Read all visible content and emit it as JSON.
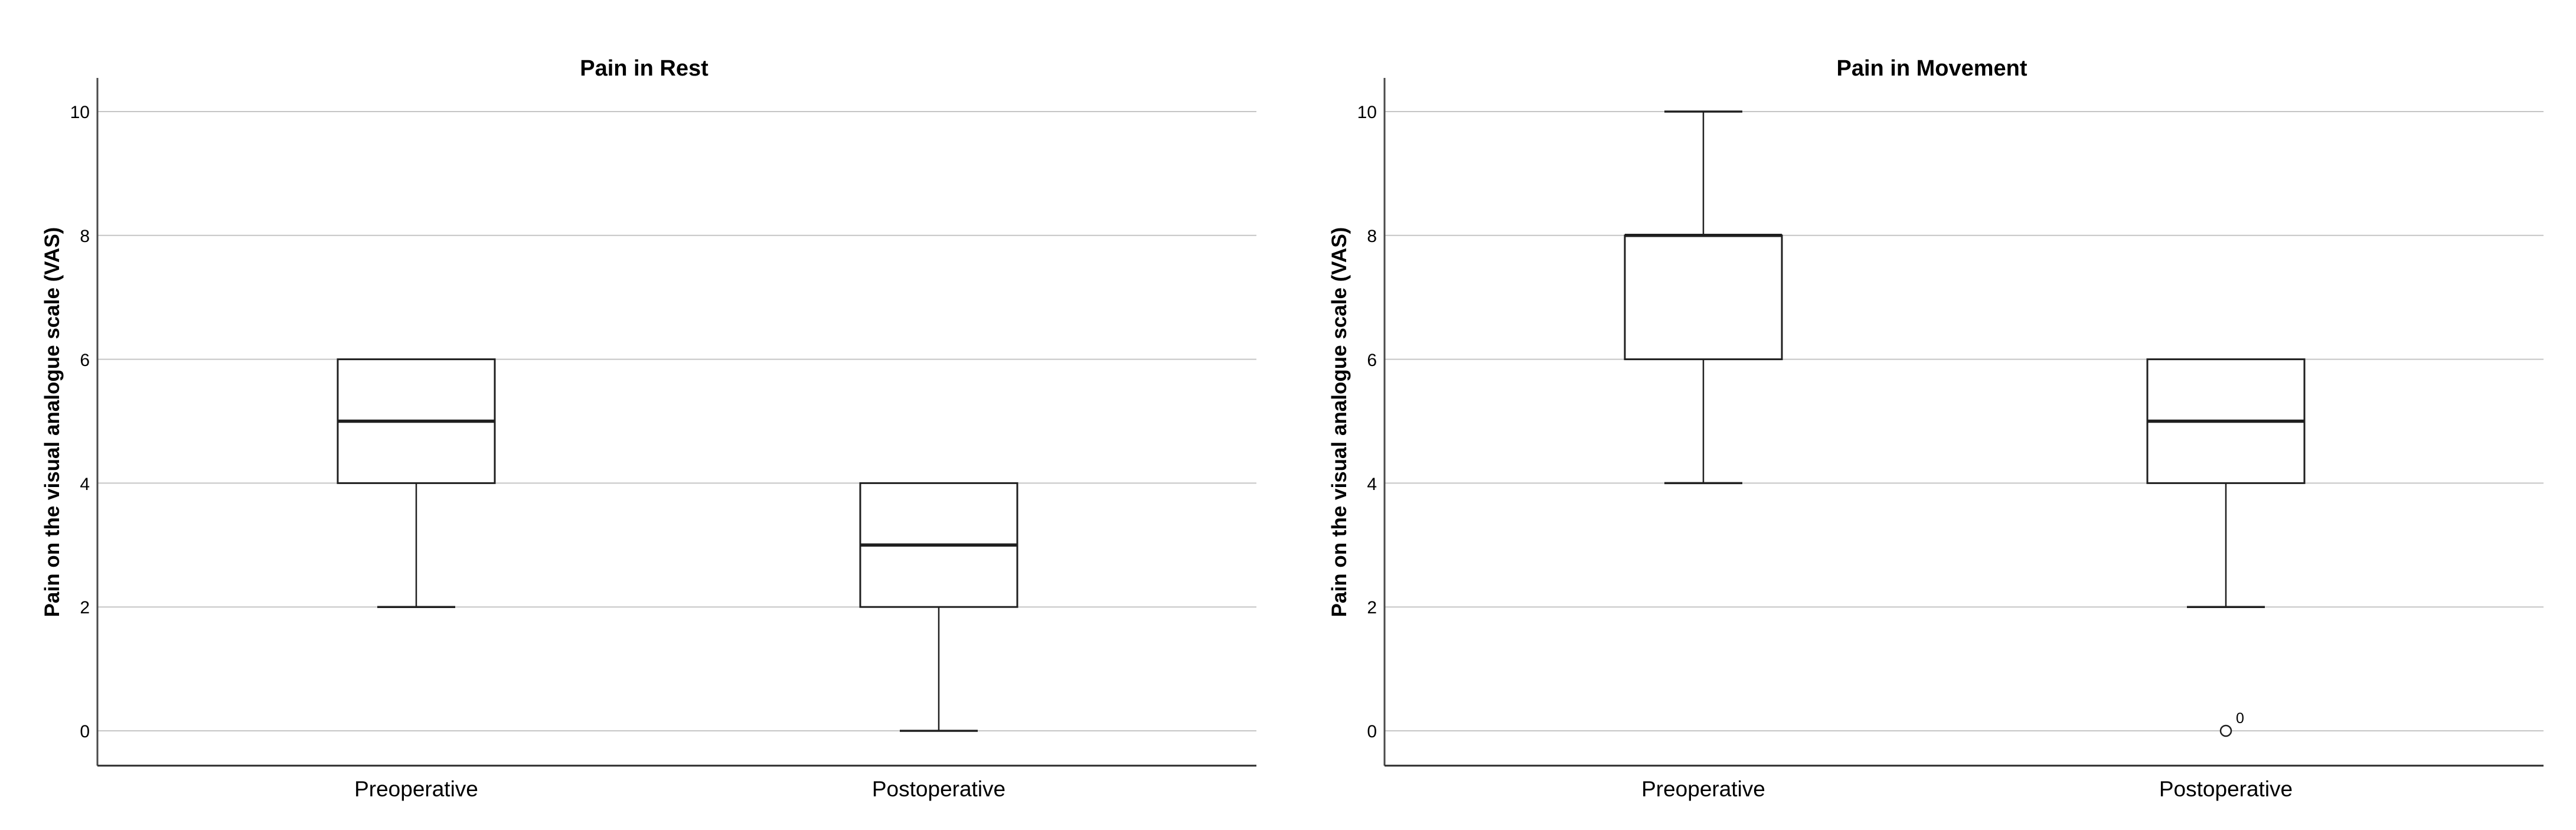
{
  "figure": {
    "background": "#ffffff",
    "description_colors": {
      "gridline": "#c5c5c5",
      "y_axis_line": "#4a4a4a",
      "x_axis_line": "#2b2b2b",
      "box_stroke": "#1f1f1f",
      "box_fill": "#ffffff",
      "text": "#000000"
    }
  },
  "chart_data": [
    {
      "type": "boxplot",
      "title": "Pain in Rest",
      "xlabel": "",
      "ylabel": "Pain on the visual analogue scale (VAS)",
      "categories": [
        "Preoperative",
        "Postoperative"
      ],
      "ylim": [
        0,
        10
      ],
      "yticks": [
        0,
        2,
        4,
        6,
        8,
        10
      ],
      "grid": "horizontal-light",
      "legend": "none",
      "series": [
        {
          "category": "Preoperative",
          "whisker_low": 2,
          "q1": 4,
          "median": 5,
          "q3": 6,
          "whisker_high": 6,
          "outliers": []
        },
        {
          "category": "Postoperative",
          "whisker_low": 0,
          "q1": 2,
          "median": 3,
          "q3": 4,
          "whisker_high": 4,
          "outliers": []
        }
      ]
    },
    {
      "type": "boxplot",
      "title": "Pain in Movement",
      "xlabel": "",
      "ylabel": "Pain on the visual analogue scale (VAS)",
      "categories": [
        "Preoperative",
        "Postoperative"
      ],
      "ylim": [
        0,
        10
      ],
      "yticks": [
        0,
        2,
        4,
        6,
        8,
        10
      ],
      "grid": "horizontal-light",
      "legend": "none",
      "series": [
        {
          "category": "Preoperative",
          "whisker_low": 4,
          "q1": 6,
          "median": 8,
          "q3": 8,
          "whisker_high": 10,
          "outliers": []
        },
        {
          "category": "Postoperative",
          "whisker_low": 2,
          "q1": 4,
          "median": 5,
          "q3": 6,
          "whisker_high": 6,
          "outliers": [
            {
              "value": 0,
              "label": "0"
            }
          ]
        }
      ]
    }
  ]
}
